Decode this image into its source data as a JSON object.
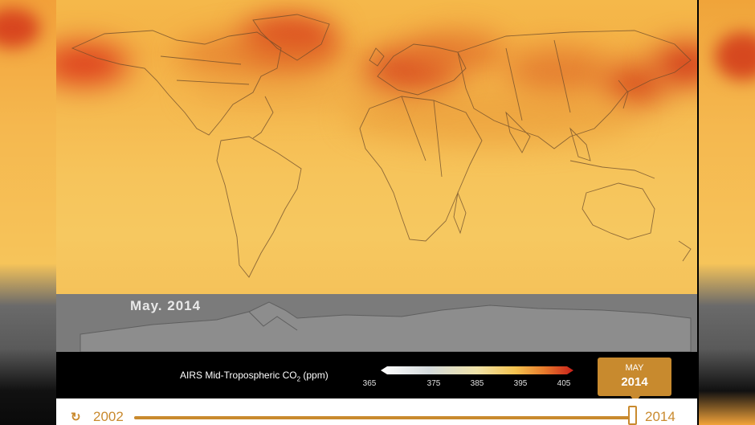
{
  "map": {
    "date_label": "May. 2014",
    "colors": {
      "low": "#f7e9b0",
      "mid": "#f5b84a",
      "high": "#c9281a",
      "antarctica": "#7b7b7b"
    }
  },
  "legend": {
    "title_main": "AIRS Mid-Tropospheric CO",
    "title_sub": "2",
    "title_unit": " (ppm)",
    "scale_min": 365,
    "scale_max": 405,
    "ticks": [
      "365",
      "375",
      "385",
      "395",
      "405"
    ]
  },
  "current_date": {
    "month": "MAY",
    "year": "2014"
  },
  "timeline": {
    "replay_icon": "replay-icon",
    "replay_glyph": "↻",
    "start_year": "2002",
    "end_year": "2014",
    "progress": 1.0
  }
}
